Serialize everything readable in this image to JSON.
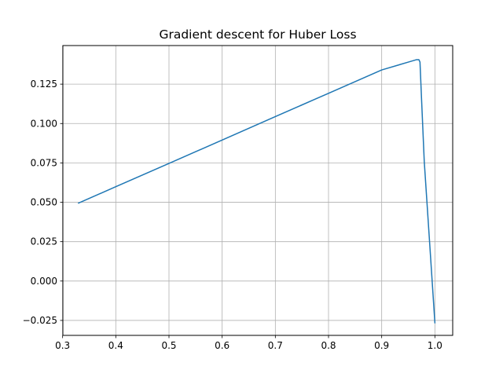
{
  "chart_data": {
    "type": "line",
    "title": "Gradient descent for Huber Loss",
    "xlabel": "",
    "ylabel": "",
    "xlim": [
      0.3005,
      1.0335
    ],
    "ylim": [
      -0.0345,
      0.1495
    ],
    "grid": true,
    "x_ticks": [
      0.3,
      0.4,
      0.5,
      0.6,
      0.7,
      0.8,
      0.9,
      1.0
    ],
    "x_tick_labels": [
      "0.3",
      "0.4",
      "0.5",
      "0.6",
      "0.7",
      "0.8",
      "0.9",
      "1.0"
    ],
    "y_ticks": [
      -0.025,
      0.0,
      0.025,
      0.05,
      0.075,
      0.1,
      0.125
    ],
    "y_tick_labels": [
      "−0.025",
      "0.000",
      "0.025",
      "0.050",
      "0.075",
      "0.100",
      "0.125"
    ],
    "series": [
      {
        "color": "#1f77b4",
        "x": [
          0.33,
          0.4,
          0.5,
          0.6,
          0.7,
          0.8,
          0.9,
          0.95,
          0.965,
          0.97,
          0.972,
          0.975,
          0.98,
          0.99,
          1.0
        ],
        "y": [
          0.0495,
          0.0599,
          0.0747,
          0.0895,
          0.1044,
          0.1192,
          0.134,
          0.139,
          0.1405,
          0.1405,
          0.139,
          0.115,
          0.076,
          0.025,
          -0.0265
        ]
      }
    ]
  }
}
